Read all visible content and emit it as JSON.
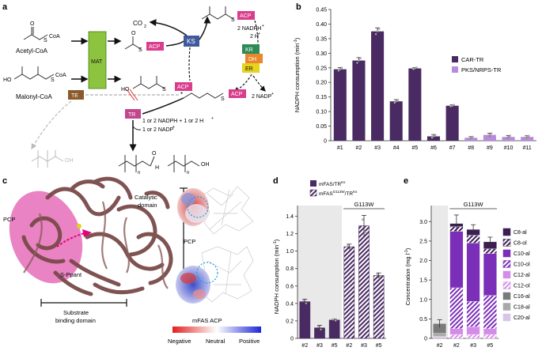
{
  "panels": {
    "a": "a",
    "b": "b",
    "c": "c",
    "d": "d",
    "e": "e"
  },
  "scheme": {
    "acetyl_coa": "Acetyl-CoA",
    "malonyl_coa": "Malonyl-CoA",
    "coa": "CoA",
    "mat": "MAT",
    "ks": "KS",
    "kr": "KR",
    "dh": "DH",
    "er": "ER",
    "te": "TE",
    "tr": "TR",
    "acp": "ACP",
    "co2": "CO",
    "co2_sub": "2",
    "s": "S",
    "ho": "HO",
    "o": "O",
    "oh": "OH",
    "h": "H",
    "n": "n",
    "star": "*",
    "nadph_in": "2 NADPH",
    "nadph_in_sup": "+",
    "h_in": "2 H",
    "h_in_sup": "+",
    "nadp_out": "2 NADP",
    "nadp_out_sup": "+",
    "tr_in": "1 or 2 NADPH + 1 or 2 H",
    "tr_in_sup": "+",
    "tr_out": "1 or 2 NADP",
    "tr_out_sup": "+",
    "colors": {
      "mat": "#8cc43f",
      "ks": "#3f5a9c",
      "kr": "#2e8b57",
      "dh": "#e8872b",
      "er": "#e6d21f",
      "te": "#8a5a2b",
      "tr": "#c2458e",
      "acp": "#d93d8c"
    }
  },
  "chart_b": {
    "ylabel": "NADPH consumption (min",
    "ylabel_sup": "-1",
    "ylabel_end": ")",
    "yticks": [
      0,
      0.05,
      0.1,
      0.15,
      0.2,
      0.25,
      0.3,
      0.35,
      0.4,
      0.45
    ],
    "ytick_labels": [
      "0",
      "0.05",
      "0.10",
      "0.15",
      "0.20",
      "0.25",
      "0.30",
      "0.35",
      "0.40",
      "0.45"
    ],
    "ylim": [
      0,
      0.45
    ],
    "categories": [
      "#1",
      "#2",
      "#3",
      "#4",
      "#5",
      "#6",
      "#7",
      "#8",
      "#9",
      "#10",
      "#11"
    ],
    "values": [
      0.245,
      0.275,
      0.375,
      0.135,
      0.248,
      0.015,
      0.12,
      0.01,
      0.02,
      0.013,
      0.013
    ],
    "errors": [
      0.006,
      0.01,
      0.012,
      0.006,
      0.003,
      0.006,
      0.003,
      0.004,
      0.006,
      0.005,
      0.004
    ],
    "groups": [
      "CAR-TR",
      "CAR-TR",
      "CAR-TR",
      "CAR-TR",
      "CAR-TR",
      "CAR-TR",
      "CAR-TR",
      "PKS/NRPS-TR",
      "PKS/NRPS-TR",
      "PKS/NRPS-TR",
      "PKS/NRPS-TR"
    ],
    "legend": [
      {
        "name": "CAR-TR",
        "color": "#4a2a63"
      },
      {
        "name": "PKS/NRPS-TR",
        "color": "#b98bdc"
      }
    ]
  },
  "panel_c": {
    "catalytic": "Catalytic",
    "domain": "domain",
    "pcp": "PCP",
    "s_ppant": "S-Ppant",
    "substrate": "Substrate",
    "binding": "binding domain",
    "pcp_small": "PCP",
    "mfas_acp": "mFAS ACP",
    "negative": "Negative",
    "neutral": "Neutral",
    "positive": "Positive"
  },
  "chart_d": {
    "legend1": "mFAS/TR",
    "legend1_sup": "Ks",
    "legend2": "mFAS",
    "legend2_sup1": "G113W",
    "legend2_mid": "/TR",
    "legend2_sup2": "Ks",
    "group_label": "G113W",
    "ylabel": "NADPH consumption (min",
    "ylabel_sup": "-1",
    "ylabel_end": ")",
    "yticks": [
      0,
      0.2,
      0.4,
      0.6,
      0.8,
      1.0,
      1.2,
      1.4
    ],
    "ytick_labels": [
      "0",
      "0.2",
      "0.4",
      "0.6",
      "0.8",
      "1.0",
      "1.2",
      "1.4"
    ],
    "ylim": [
      0,
      1.45
    ],
    "categories": [
      "#2",
      "#3",
      "#5",
      "#2",
      "#3",
      "#5"
    ],
    "values": [
      0.42,
      0.12,
      0.21,
      1.05,
      1.29,
      0.72
    ],
    "errors": [
      0.03,
      0.03,
      0.01,
      0.03,
      0.12,
      0.03
    ],
    "hatched": [
      false,
      false,
      false,
      true,
      true,
      true
    ],
    "color": "#4a2a63"
  },
  "chart_e": {
    "group_label": "G113W",
    "ylabel": "Concentration (mg l",
    "ylabel_sup": "-1",
    "ylabel_end": ")",
    "yticks": [
      0,
      0.5,
      1.0,
      1.5,
      2.0,
      2.5,
      3.0
    ],
    "ytick_labels": [
      "0",
      "0.5",
      "1.0",
      "1.5",
      "2.0",
      "2.5",
      "3.0"
    ],
    "ylim": [
      0,
      3.25
    ],
    "categories": [
      "#2",
      "#2",
      "#3",
      "#5"
    ],
    "totals": [
      0.38,
      2.95,
      2.8,
      2.48
    ],
    "legend": [
      {
        "name": "C8-al",
        "color": "#3b1f52",
        "hatch": false
      },
      {
        "name": "C8-ol",
        "color": "#3b1f52",
        "hatch": true
      },
      {
        "name": "C10-al",
        "color": "#7b2fb8",
        "hatch": false
      },
      {
        "name": "C10-ol",
        "color": "#7b2fb8",
        "hatch": true
      },
      {
        "name": "C12-al",
        "color": "#d58ce8",
        "hatch": false
      },
      {
        "name": "C12-ol",
        "color": "#d58ce8",
        "hatch": true
      },
      {
        "name": "C16-al",
        "color": "#7a7a7a",
        "hatch": false
      },
      {
        "name": "C18-al",
        "color": "#a9a9a9",
        "hatch": false
      },
      {
        "name": "C20-al",
        "color": "#d9c6e6",
        "hatch": false
      }
    ],
    "stacks": [
      [
        [
          "C20-al",
          0.05
        ],
        [
          "C18-al",
          0.08
        ],
        [
          "C16-al",
          0.25
        ]
      ],
      [
        [
          "C12-ol",
          0.1
        ],
        [
          "C12-al",
          0.15
        ],
        [
          "C10-ol",
          1.05
        ],
        [
          "C10-al",
          1.45
        ],
        [
          "C8-ol",
          0.12
        ],
        [
          "C8-al",
          0.08
        ]
      ],
      [
        [
          "C12-ol",
          0.1
        ],
        [
          "C12-al",
          0.2
        ],
        [
          "C10-ol",
          0.65
        ],
        [
          "C10-al",
          1.5
        ],
        [
          "C8-ol",
          0.2
        ],
        [
          "C8-al",
          0.15
        ]
      ],
      [
        [
          "C12-ol",
          0.1
        ],
        [
          "C12-al",
          0.15
        ],
        [
          "C10-ol",
          0.85
        ],
        [
          "C10-al",
          1.08
        ],
        [
          "C8-ol",
          0.12
        ],
        [
          "C8-al",
          0.18
        ]
      ]
    ],
    "errors": [
      0.1,
      0.22,
      0.12,
      0.12
    ]
  }
}
